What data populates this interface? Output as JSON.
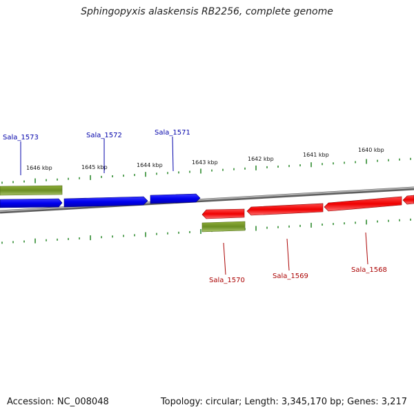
{
  "title": "Sphingopyxis alaskensis RB2256, complete genome",
  "footer": {
    "accession": "Accession: NC_008048",
    "summary": "Topology: circular; Length: 3,345,170 bp; Genes: 3,217"
  },
  "colors": {
    "forward_gene": "#0000ee",
    "reverse_gene": "#ee0000",
    "feature_olive": "#6b8e23",
    "tick": "#2e8b2e",
    "backbone": "#8a8a8a",
    "forward_label": "#0000aa",
    "reverse_label": "#aa0000"
  },
  "ruler_labels": [
    "1646 kbp",
    "1645 kbp",
    "1644 kbp",
    "1643 kbp",
    "1642 kbp",
    "1641 kbp",
    "1640 kbp"
  ],
  "forward_genes": [
    "Sala_1573",
    "Sala_1572",
    "Sala_1571"
  ],
  "reverse_genes": [
    "Sala_1570",
    "Sala_1569",
    "Sala_1568"
  ]
}
